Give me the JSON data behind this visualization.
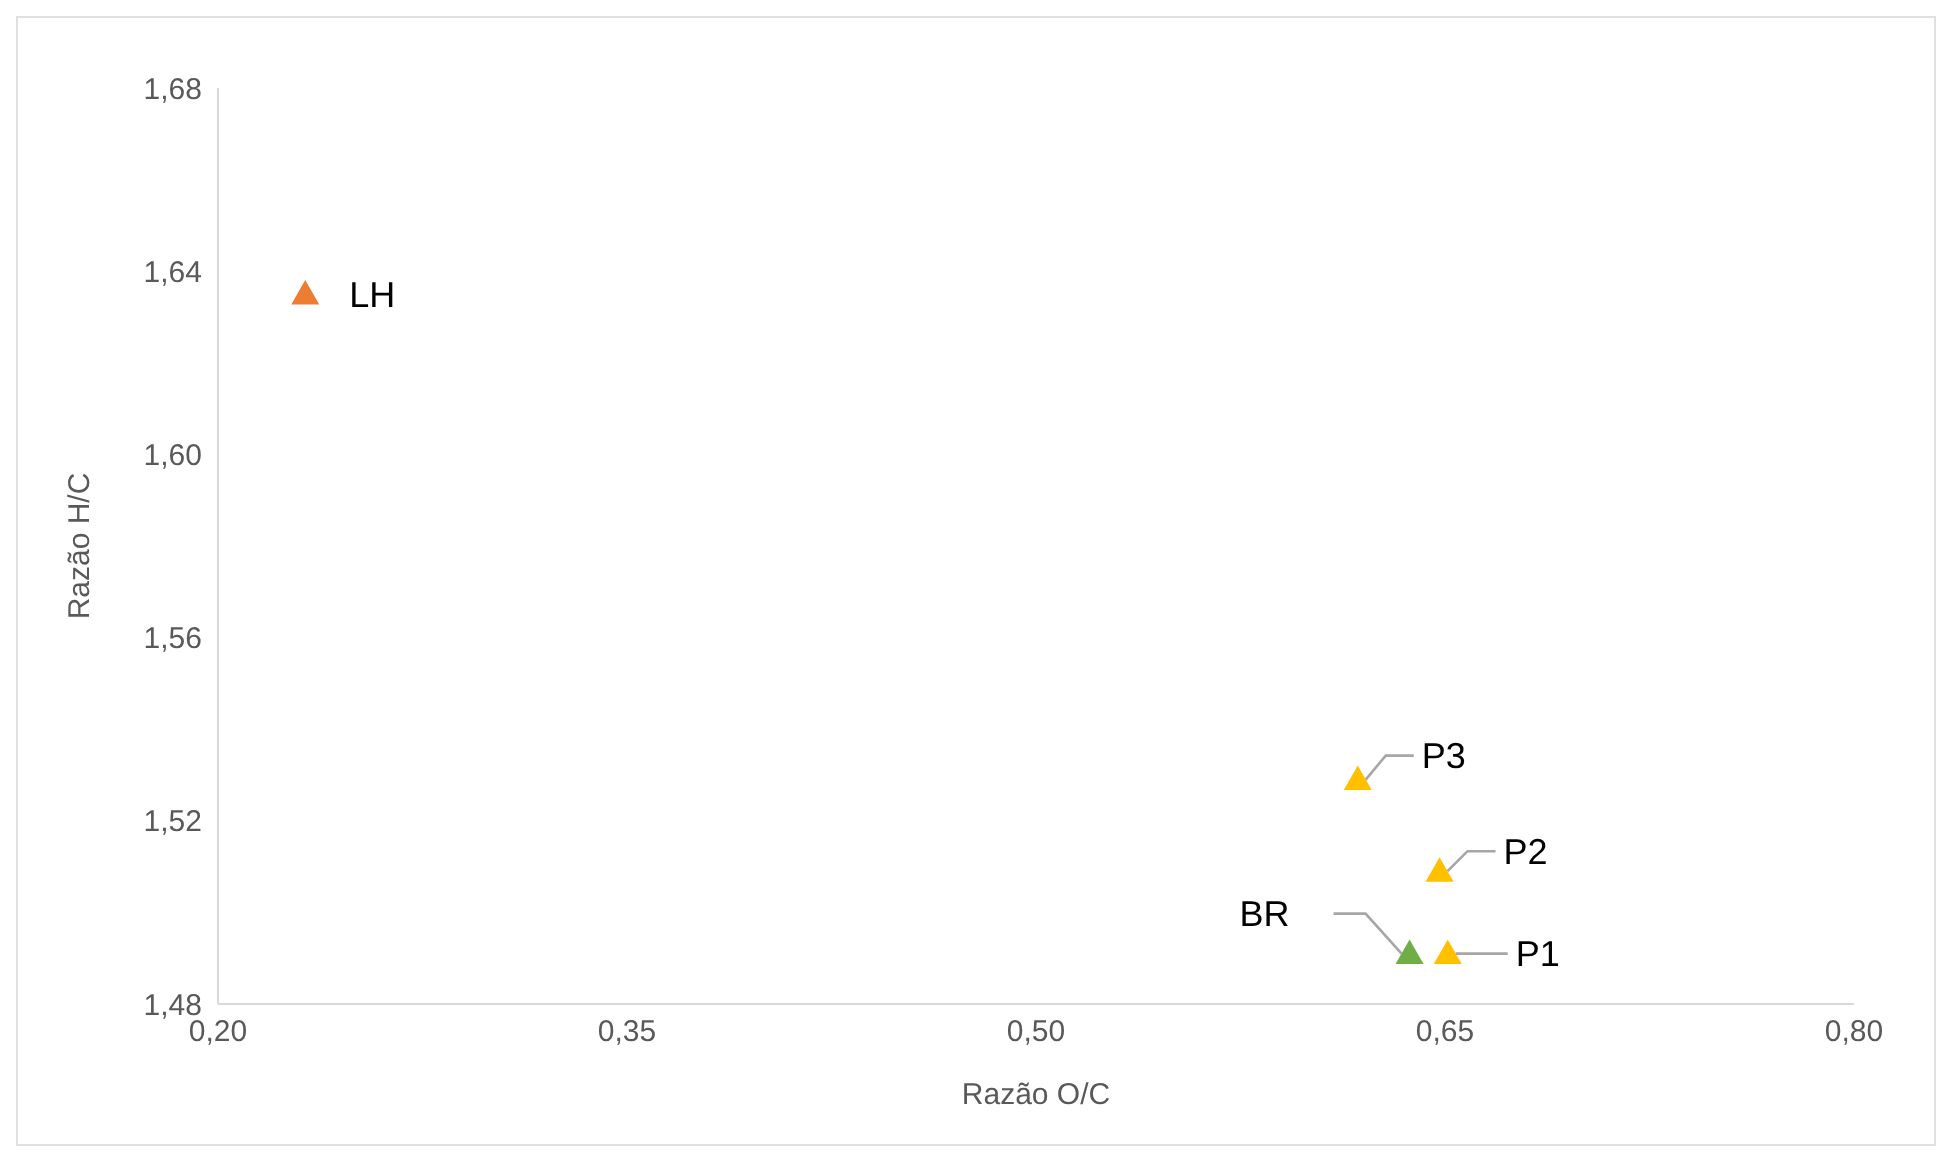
{
  "chart_data": {
    "type": "scatter",
    "xlabel": "Razão O/C",
    "ylabel": "Razão H/C",
    "xlim": [
      0.2,
      0.8
    ],
    "xticks": [
      {
        "value": 0.2,
        "label": "0,20"
      },
      {
        "value": 0.35,
        "label": "0,35"
      },
      {
        "value": 0.5,
        "label": "0,50"
      },
      {
        "value": 0.65,
        "label": "0,65"
      },
      {
        "value": 0.8,
        "label": "0,80"
      }
    ],
    "ylim": [
      1.48,
      1.68
    ],
    "yticks": [
      {
        "value": 1.48,
        "label": "1,48"
      },
      {
        "value": 1.52,
        "label": "1,52"
      },
      {
        "value": 1.56,
        "label": "1,56"
      },
      {
        "value": 1.6,
        "label": "1,60"
      },
      {
        "value": 1.64,
        "label": "1,64"
      },
      {
        "value": 1.68,
        "label": "1,68"
      }
    ],
    "grid": false,
    "legend": false,
    "marker": "triangle",
    "series": [
      {
        "name": "LH",
        "color": "#ed7d31",
        "x": [
          0.232
        ],
        "values": [
          1.635
        ]
      },
      {
        "name": "P3",
        "color": "#ffc000",
        "x": [
          0.618
        ],
        "values": [
          1.529
        ]
      },
      {
        "name": "P2",
        "color": "#ffc000",
        "x": [
          0.648
        ],
        "values": [
          1.509
        ]
      },
      {
        "name": "BR",
        "color": "#70ad47",
        "x": [
          0.637
        ],
        "values": [
          1.491
        ]
      },
      {
        "name": "P1",
        "color": "#ffc000",
        "x": [
          0.651
        ],
        "values": [
          1.491
        ]
      }
    ]
  }
}
